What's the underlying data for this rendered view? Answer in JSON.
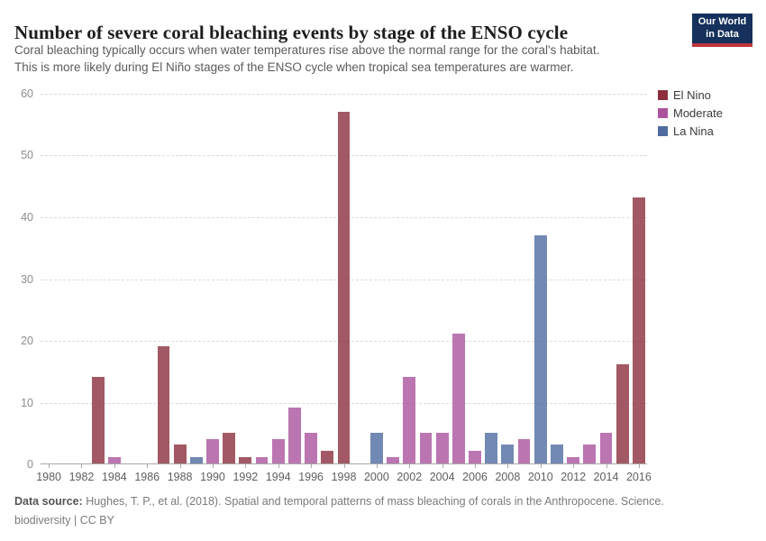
{
  "header": {
    "title": "Number of severe coral bleaching events by stage of the ENSO cycle",
    "subtitle_line1": "Coral bleaching typically occurs when water temperatures rise above the normal range for the coral's habitat.",
    "subtitle_line2": "This is more likely during El Niño stages of the ENSO cycle when tropical sea temperatures are warmer."
  },
  "logo": {
    "line1": "Our World",
    "line2": "in Data",
    "bg_color": "#15315c",
    "accent_color": "#c0343c"
  },
  "legend": [
    {
      "label": "El Nino",
      "color": "#8b2f3f"
    },
    {
      "label": "Moderate",
      "color": "#aa549d"
    },
    {
      "label": "La Nina",
      "color": "#4f6ba0"
    }
  ],
  "chart_data": {
    "type": "bar",
    "title": "Number of severe coral bleaching events by stage of the ENSO cycle",
    "xlabel": "",
    "ylabel": "",
    "ylim": [
      0,
      60
    ],
    "yticks": [
      0,
      10,
      20,
      30,
      40,
      50,
      60
    ],
    "grid": "horizontal-dashed",
    "legend_position": "right-top",
    "bar_opacity": 0.8,
    "colors": {
      "El Nino": "#8b2f3f",
      "Moderate": "#aa549d",
      "La Nina": "#4f6ba0"
    },
    "x_range": [
      1980,
      2016
    ],
    "xtick_labels": [
      "1980",
      "1982",
      "1984",
      "1986",
      "1988",
      "1990",
      "1992",
      "1994",
      "1996",
      "1998",
      "2000",
      "2002",
      "2004",
      "2006",
      "2008",
      "2010",
      "2012",
      "2014",
      "2016"
    ],
    "points": [
      {
        "year": 1980,
        "value": 0,
        "stage": null
      },
      {
        "year": 1981,
        "value": 0,
        "stage": null
      },
      {
        "year": 1982,
        "value": 0,
        "stage": null
      },
      {
        "year": 1983,
        "value": 14,
        "stage": "El Nino"
      },
      {
        "year": 1984,
        "value": 1,
        "stage": "Moderate"
      },
      {
        "year": 1985,
        "value": 0,
        "stage": null
      },
      {
        "year": 1986,
        "value": 0,
        "stage": null
      },
      {
        "year": 1987,
        "value": 19,
        "stage": "El Nino"
      },
      {
        "year": 1988,
        "value": 3,
        "stage": "El Nino"
      },
      {
        "year": 1989,
        "value": 1,
        "stage": "La Nina"
      },
      {
        "year": 1990,
        "value": 4,
        "stage": "Moderate"
      },
      {
        "year": 1991,
        "value": 5,
        "stage": "El Nino"
      },
      {
        "year": 1992,
        "value": 1,
        "stage": "El Nino"
      },
      {
        "year": 1993,
        "value": 1,
        "stage": "Moderate"
      },
      {
        "year": 1994,
        "value": 4,
        "stage": "Moderate"
      },
      {
        "year": 1995,
        "value": 9,
        "stage": "Moderate"
      },
      {
        "year": 1996,
        "value": 5,
        "stage": "Moderate"
      },
      {
        "year": 1997,
        "value": 2,
        "stage": "El Nino"
      },
      {
        "year": 1998,
        "value": 57,
        "stage": "El Nino"
      },
      {
        "year": 1999,
        "value": 0,
        "stage": null
      },
      {
        "year": 2000,
        "value": 5,
        "stage": "La Nina"
      },
      {
        "year": 2001,
        "value": 1,
        "stage": "Moderate"
      },
      {
        "year": 2002,
        "value": 14,
        "stage": "Moderate"
      },
      {
        "year": 2003,
        "value": 5,
        "stage": "Moderate"
      },
      {
        "year": 2004,
        "value": 5,
        "stage": "Moderate"
      },
      {
        "year": 2005,
        "value": 21,
        "stage": "Moderate"
      },
      {
        "year": 2006,
        "value": 2,
        "stage": "Moderate"
      },
      {
        "year": 2007,
        "value": 5,
        "stage": "La Nina"
      },
      {
        "year": 2008,
        "value": 3,
        "stage": "La Nina"
      },
      {
        "year": 2009,
        "value": 4,
        "stage": "Moderate"
      },
      {
        "year": 2010,
        "value": 37,
        "stage": "La Nina"
      },
      {
        "year": 2011,
        "value": 3,
        "stage": "La Nina"
      },
      {
        "year": 2012,
        "value": 1,
        "stage": "Moderate"
      },
      {
        "year": 2013,
        "value": 3,
        "stage": "Moderate"
      },
      {
        "year": 2014,
        "value": 5,
        "stage": "Moderate"
      },
      {
        "year": 2015,
        "value": 16,
        "stage": "El Nino"
      },
      {
        "year": 2016,
        "value": 43,
        "stage": "El Nino"
      }
    ]
  },
  "footer": {
    "source_label": "Data source:",
    "source_text": " Hughes, T. P., et al. (2018). Spatial and temporal patterns of mass bleaching of corals in the Anthropocene. Science.",
    "line2": "biodiversity | CC BY"
  }
}
